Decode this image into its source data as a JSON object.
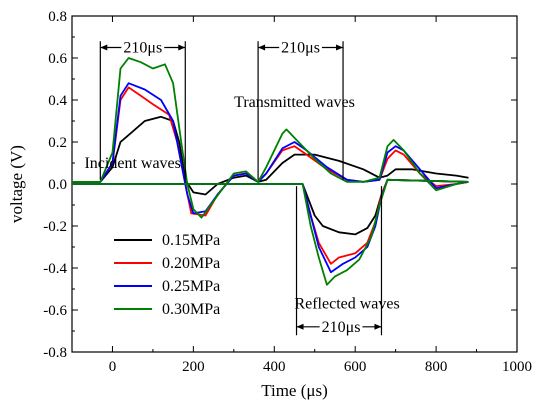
{
  "chart_data": {
    "type": "line",
    "title": "",
    "xlabel": "Time (μs)",
    "ylabel": "voltage (V)",
    "xlim": [
      -100,
      1000
    ],
    "ylim": [
      -0.8,
      0.8
    ],
    "xticks": [
      0,
      200,
      400,
      600,
      800,
      1000
    ],
    "yticks": [
      -0.8,
      -0.6,
      -0.4,
      -0.2,
      0.0,
      0.2,
      0.4,
      0.6,
      0.8
    ],
    "xtick_labels": [
      "0",
      "200",
      "400",
      "600",
      "800",
      "1000"
    ],
    "ytick_labels": [
      "-0.8",
      "-0.6",
      "-0.4",
      "-0.2",
      "0.0",
      "0.2",
      "0.4",
      "0.6",
      "0.8"
    ],
    "grid": false,
    "legend_position": "lower-left",
    "series": [
      {
        "name": "0.15MPa",
        "color": "#000000",
        "points": [
          [
            -100,
            0.01
          ],
          [
            -30,
            0.01
          ],
          [
            0,
            0.08
          ],
          [
            20,
            0.2
          ],
          [
            50,
            0.25
          ],
          [
            80,
            0.3
          ],
          [
            120,
            0.32
          ],
          [
            150,
            0.3
          ],
          [
            165,
            0.2
          ],
          [
            180,
            0.02
          ],
          [
            200,
            -0.04
          ],
          [
            230,
            -0.05
          ],
          [
            260,
            0.0
          ],
          [
            300,
            0.03
          ],
          [
            330,
            0.04
          ],
          [
            360,
            0.01
          ],
          [
            380,
            0.02
          ],
          [
            420,
            0.1
          ],
          [
            450,
            0.14
          ],
          [
            500,
            0.14
          ],
          [
            560,
            0.11
          ],
          [
            620,
            0.07
          ],
          [
            660,
            0.03
          ],
          [
            680,
            0.04
          ],
          [
            700,
            0.07
          ],
          [
            740,
            0.07
          ],
          [
            800,
            0.05
          ],
          [
            850,
            0.04
          ],
          [
            880,
            0.03
          ]
        ]
      },
      {
        "name": "0.20MPa",
        "color": "#ff0000",
        "points": [
          [
            -100,
            0.01
          ],
          [
            -30,
            0.01
          ],
          [
            0,
            0.1
          ],
          [
            20,
            0.4
          ],
          [
            40,
            0.46
          ],
          [
            70,
            0.42
          ],
          [
            100,
            0.38
          ],
          [
            140,
            0.33
          ],
          [
            160,
            0.2
          ],
          [
            180,
            0.0
          ],
          [
            195,
            -0.14
          ],
          [
            230,
            -0.15
          ],
          [
            260,
            -0.05
          ],
          [
            300,
            0.04
          ],
          [
            330,
            0.05
          ],
          [
            360,
            0.01
          ],
          [
            380,
            0.05
          ],
          [
            420,
            0.16
          ],
          [
            450,
            0.18
          ],
          [
            480,
            0.14
          ],
          [
            530,
            0.07
          ],
          [
            580,
            0.02
          ],
          [
            620,
            0.01
          ],
          [
            660,
            0.02
          ],
          [
            680,
            0.12
          ],
          [
            700,
            0.16
          ],
          [
            720,
            0.14
          ],
          [
            760,
            0.05
          ],
          [
            800,
            -0.01
          ],
          [
            850,
            0.0
          ],
          [
            880,
            0.01
          ]
        ]
      },
      {
        "name": "0.25MPa",
        "color": "#0000ff",
        "points": [
          [
            -100,
            0.01
          ],
          [
            -30,
            0.01
          ],
          [
            0,
            0.1
          ],
          [
            20,
            0.42
          ],
          [
            40,
            0.48
          ],
          [
            80,
            0.45
          ],
          [
            120,
            0.4
          ],
          [
            150,
            0.3
          ],
          [
            170,
            0.1
          ],
          [
            185,
            -0.05
          ],
          [
            200,
            -0.14
          ],
          [
            230,
            -0.13
          ],
          [
            260,
            -0.05
          ],
          [
            300,
            0.04
          ],
          [
            330,
            0.05
          ],
          [
            360,
            0.01
          ],
          [
            380,
            0.05
          ],
          [
            420,
            0.17
          ],
          [
            450,
            0.2
          ],
          [
            480,
            0.16
          ],
          [
            530,
            0.08
          ],
          [
            580,
            0.02
          ],
          [
            620,
            0.01
          ],
          [
            660,
            0.02
          ],
          [
            680,
            0.15
          ],
          [
            700,
            0.18
          ],
          [
            720,
            0.16
          ],
          [
            760,
            0.07
          ],
          [
            800,
            -0.02
          ],
          [
            850,
            0.0
          ],
          [
            880,
            0.01
          ]
        ]
      },
      {
        "name": "0.30MPa",
        "color": "#008000",
        "points": [
          [
            -100,
            0.01
          ],
          [
            -30,
            0.01
          ],
          [
            0,
            0.15
          ],
          [
            20,
            0.55
          ],
          [
            40,
            0.6
          ],
          [
            70,
            0.58
          ],
          [
            100,
            0.55
          ],
          [
            130,
            0.57
          ],
          [
            150,
            0.48
          ],
          [
            170,
            0.2
          ],
          [
            185,
            0.0
          ],
          [
            200,
            -0.12
          ],
          [
            220,
            -0.16
          ],
          [
            250,
            -0.08
          ],
          [
            300,
            0.05
          ],
          [
            330,
            0.06
          ],
          [
            360,
            0.01
          ],
          [
            380,
            0.08
          ],
          [
            420,
            0.24
          ],
          [
            430,
            0.26
          ],
          [
            460,
            0.2
          ],
          [
            500,
            0.12
          ],
          [
            540,
            0.05
          ],
          [
            580,
            0.01
          ],
          [
            620,
            0.01
          ],
          [
            660,
            0.03
          ],
          [
            680,
            0.18
          ],
          [
            695,
            0.21
          ],
          [
            720,
            0.16
          ],
          [
            760,
            0.05
          ],
          [
            800,
            -0.03
          ],
          [
            850,
            0.0
          ],
          [
            880,
            0.01
          ]
        ]
      },
      {
        "name": "",
        "color": "#000000",
        "points": [
          [
            -100,
            0.0
          ],
          [
            470,
            0.0
          ],
          [
            480,
            -0.05
          ],
          [
            500,
            -0.15
          ],
          [
            520,
            -0.2
          ],
          [
            560,
            -0.23
          ],
          [
            600,
            -0.24
          ],
          [
            630,
            -0.21
          ],
          [
            650,
            -0.15
          ],
          [
            665,
            -0.05
          ],
          [
            680,
            0.02
          ],
          [
            880,
            0.01
          ]
        ]
      },
      {
        "name": "",
        "color": "#ff0000",
        "points": [
          [
            -100,
            0.0
          ],
          [
            470,
            0.0
          ],
          [
            490,
            -0.15
          ],
          [
            510,
            -0.28
          ],
          [
            540,
            -0.38
          ],
          [
            560,
            -0.35
          ],
          [
            600,
            -0.33
          ],
          [
            630,
            -0.28
          ],
          [
            650,
            -0.18
          ],
          [
            665,
            -0.05
          ],
          [
            680,
            0.02
          ],
          [
            880,
            0.01
          ]
        ]
      },
      {
        "name": "",
        "color": "#0000ff",
        "points": [
          [
            -100,
            0.0
          ],
          [
            470,
            0.0
          ],
          [
            490,
            -0.15
          ],
          [
            510,
            -0.3
          ],
          [
            540,
            -0.42
          ],
          [
            570,
            -0.38
          ],
          [
            600,
            -0.35
          ],
          [
            630,
            -0.3
          ],
          [
            650,
            -0.2
          ],
          [
            665,
            -0.06
          ],
          [
            680,
            0.02
          ],
          [
            880,
            0.01
          ]
        ]
      },
      {
        "name": "",
        "color": "#008000",
        "points": [
          [
            -100,
            0.0
          ],
          [
            470,
            0.0
          ],
          [
            490,
            -0.2
          ],
          [
            510,
            -0.35
          ],
          [
            530,
            -0.48
          ],
          [
            550,
            -0.44
          ],
          [
            580,
            -0.41
          ],
          [
            610,
            -0.36
          ],
          [
            640,
            -0.25
          ],
          [
            660,
            -0.1
          ],
          [
            680,
            0.02
          ],
          [
            880,
            0.01
          ]
        ]
      }
    ],
    "annotations": [
      {
        "text": "Incident waves",
        "x": 50,
        "y": 0.1
      },
      {
        "text": "Transmitted waves",
        "x": 450,
        "y": 0.39
      },
      {
        "text": "Reflected waves",
        "x": 580,
        "y": -0.57
      },
      {
        "text": "210μs",
        "x": 75,
        "y": 0.65
      },
      {
        "text": "210μs",
        "x": 465,
        "y": 0.65
      },
      {
        "text": "210μs",
        "x": 565,
        "y": -0.68
      }
    ],
    "spans": [
      {
        "label": "210μs",
        "x1": -30,
        "x2": 180,
        "y": 0.65,
        "line_top": 0.68,
        "line_bottom": 0.02
      },
      {
        "label": "210μs",
        "x1": 360,
        "x2": 570,
        "y": 0.65,
        "line_top": 0.68,
        "line_bottom": 0.02
      },
      {
        "label": "210μs",
        "x1": 455,
        "x2": 665,
        "y": -0.68,
        "line_top": -0.01,
        "line_bottom": -0.72
      }
    ]
  }
}
